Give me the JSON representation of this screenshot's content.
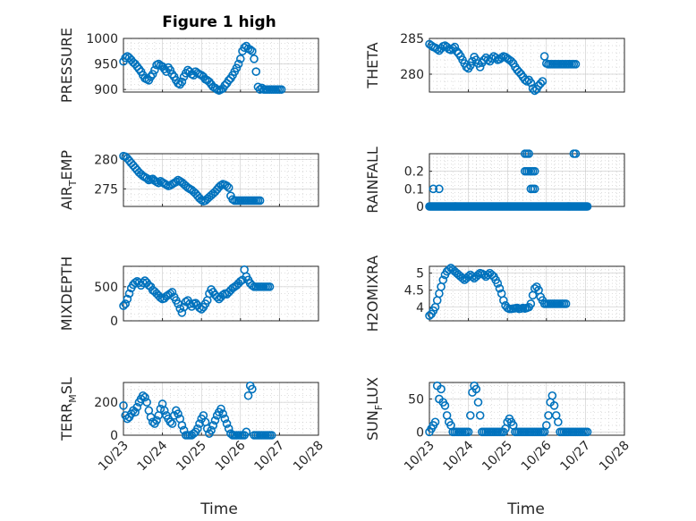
{
  "figure_title": "Figure 1 high",
  "x_label": "Time",
  "x_tick_labels": [
    "10/23",
    "10/24",
    "10/25",
    "10/26",
    "10/27",
    "10/28"
  ],
  "marker_color": "#0072BD",
  "chart_data": [
    {
      "type": "scatter",
      "title": "Figure 1 high",
      "ylabel": "PRESSURE",
      "ylim": [
        895,
        1000
      ],
      "yticks": [
        900,
        950,
        1000
      ],
      "xlim": [
        0,
        5
      ],
      "xlabel": "",
      "x": [
        0.0,
        0.05,
        0.1,
        0.15,
        0.2,
        0.25,
        0.3,
        0.35,
        0.4,
        0.45,
        0.5,
        0.55,
        0.6,
        0.65,
        0.7,
        0.75,
        0.8,
        0.85,
        0.9,
        0.95,
        1.0,
        1.05,
        1.1,
        1.15,
        1.2,
        1.25,
        1.3,
        1.35,
        1.4,
        1.45,
        1.5,
        1.55,
        1.6,
        1.65,
        1.7,
        1.75,
        1.8,
        1.85,
        1.9,
        1.95,
        2.0,
        2.05,
        2.1,
        2.15,
        2.2,
        2.25,
        2.3,
        2.35,
        2.4,
        2.45,
        2.5,
        2.55,
        2.6,
        2.65,
        2.7,
        2.75,
        2.8,
        2.85,
        2.9,
        2.95,
        3.0,
        3.05,
        3.1,
        3.15,
        3.2,
        3.25,
        3.3,
        3.35,
        3.4,
        3.45,
        3.5,
        3.55,
        3.6,
        3.65,
        3.7,
        3.75,
        3.8,
        3.85,
        3.9,
        3.95,
        4.0,
        4.05
      ],
      "y": [
        955,
        962,
        965,
        962,
        958,
        953,
        950,
        945,
        940,
        935,
        928,
        922,
        920,
        918,
        925,
        930,
        938,
        948,
        950,
        947,
        945,
        940,
        935,
        943,
        938,
        930,
        925,
        918,
        912,
        910,
        915,
        925,
        932,
        938,
        935,
        930,
        928,
        935,
        932,
        930,
        928,
        925,
        920,
        918,
        915,
        910,
        905,
        903,
        900,
        898,
        900,
        902,
        908,
        912,
        918,
        922,
        928,
        935,
        942,
        950,
        960,
        975,
        982,
        985,
        980,
        978,
        975,
        960,
        935,
        905,
        900,
        903,
        900,
        900,
        900,
        900,
        900,
        900,
        900,
        900,
        900,
        900
      ]
    },
    {
      "type": "scatter",
      "ylabel": "THETA",
      "ylim": [
        277.5,
        285
      ],
      "yticks": [
        280,
        285
      ],
      "xlim": [
        0,
        5
      ],
      "xlabel": "",
      "x": [
        0.0,
        0.05,
        0.1,
        0.15,
        0.2,
        0.25,
        0.3,
        0.35,
        0.4,
        0.45,
        0.5,
        0.55,
        0.6,
        0.65,
        0.7,
        0.75,
        0.8,
        0.85,
        0.9,
        0.95,
        1.0,
        1.05,
        1.1,
        1.15,
        1.2,
        1.25,
        1.3,
        1.35,
        1.4,
        1.45,
        1.5,
        1.55,
        1.6,
        1.65,
        1.7,
        1.75,
        1.8,
        1.85,
        1.9,
        1.95,
        2.0,
        2.05,
        2.1,
        2.15,
        2.2,
        2.25,
        2.3,
        2.35,
        2.4,
        2.45,
        2.5,
        2.55,
        2.6,
        2.65,
        2.7,
        2.75,
        2.8,
        2.85,
        2.9,
        2.95,
        3.0,
        3.05,
        3.1,
        3.15,
        3.2,
        3.25,
        3.3,
        3.35,
        3.4,
        3.45,
        3.5,
        3.55,
        3.6,
        3.65,
        3.7,
        3.75
      ],
      "y": [
        284.2,
        284.0,
        283.8,
        283.7,
        283.5,
        283.3,
        283.6,
        283.9,
        284.0,
        283.8,
        283.5,
        283.4,
        283.6,
        283.8,
        283.2,
        282.9,
        282.5,
        282.0,
        281.5,
        281.0,
        280.8,
        281.2,
        281.8,
        282.4,
        282.0,
        281.5,
        281.0,
        281.6,
        282.0,
        282.3,
        282.0,
        281.8,
        282.2,
        282.5,
        282.3,
        282.0,
        282.1,
        282.3,
        282.5,
        282.4,
        282.2,
        282.0,
        281.8,
        281.5,
        281.0,
        280.6,
        280.3,
        280.0,
        279.6,
        279.2,
        279.0,
        279.2,
        278.8,
        278.0,
        277.7,
        277.9,
        278.4,
        278.7,
        279.0,
        282.5,
        281.5,
        281.4,
        281.4,
        281.4,
        281.4,
        281.4,
        281.4,
        281.4,
        281.4,
        281.4,
        281.4,
        281.4,
        281.4,
        281.4,
        281.4,
        281.4
      ]
    },
    {
      "type": "scatter",
      "ylabel": "AIR_TEMP",
      "ylim": [
        272,
        281
      ],
      "yticks": [
        275,
        280
      ],
      "xlim": [
        0,
        5
      ],
      "xlabel": "",
      "x": [
        0.0,
        0.05,
        0.1,
        0.15,
        0.2,
        0.25,
        0.3,
        0.35,
        0.4,
        0.45,
        0.5,
        0.55,
        0.6,
        0.65,
        0.7,
        0.75,
        0.8,
        0.85,
        0.9,
        0.95,
        1.0,
        1.05,
        1.1,
        1.15,
        1.2,
        1.25,
        1.3,
        1.35,
        1.4,
        1.45,
        1.5,
        1.55,
        1.6,
        1.65,
        1.7,
        1.75,
        1.8,
        1.85,
        1.9,
        1.95,
        2.0,
        2.05,
        2.1,
        2.15,
        2.2,
        2.25,
        2.3,
        2.35,
        2.4,
        2.45,
        2.5,
        2.55,
        2.6,
        2.65,
        2.7,
        2.75,
        2.8,
        2.85,
        2.9,
        2.95,
        3.0,
        3.05,
        3.1,
        3.15,
        3.2,
        3.25,
        3.3,
        3.35,
        3.4,
        3.45,
        3.5
      ],
      "y": [
        280.6,
        280.5,
        280.2,
        279.8,
        279.4,
        279.0,
        278.6,
        278.2,
        277.8,
        277.5,
        277.2,
        277.0,
        276.8,
        276.5,
        276.6,
        276.7,
        276.4,
        276.2,
        276.0,
        276.3,
        276.1,
        275.9,
        275.7,
        275.5,
        275.6,
        275.8,
        276.0,
        276.2,
        276.5,
        276.3,
        276.1,
        275.8,
        275.5,
        275.2,
        275.0,
        274.8,
        274.5,
        274.2,
        273.8,
        273.4,
        273.1,
        272.9,
        273.0,
        273.3,
        273.6,
        273.9,
        274.2,
        274.5,
        274.9,
        275.3,
        275.6,
        275.8,
        275.7,
        275.5,
        275.2,
        273.8,
        273.2,
        273.0,
        273.0,
        273.0,
        273.0,
        273.0,
        273.0,
        273.0,
        273.0,
        273.0,
        273.0,
        273.0,
        273.0,
        273.0,
        273.0
      ]
    },
    {
      "type": "scatter",
      "ylabel": "RAINFALL",
      "ylim": [
        0,
        0.3
      ],
      "yticks": [
        0,
        0.1,
        0.2
      ],
      "ytick_labels": [
        "0",
        "0.1",
        "0.2"
      ],
      "xlim": [
        0,
        5
      ],
      "xlabel": "",
      "x": [
        0.1,
        0.25,
        2.45,
        2.5,
        2.55,
        2.45,
        2.5,
        2.55,
        2.6,
        2.65,
        2.7,
        2.6,
        2.65,
        2.7,
        3.7,
        3.75
      ],
      "y": [
        0.1,
        0.1,
        0.3,
        0.3,
        0.3,
        0.2,
        0.2,
        0.2,
        0.2,
        0.2,
        0.2,
        0.1,
        0.1,
        0.1,
        0.3,
        0.3
      ],
      "baseline_x_range": [
        0,
        4.05
      ],
      "baseline_y": 0
    },
    {
      "type": "scatter",
      "ylabel": "MIXDEPTH",
      "ylim": [
        0,
        800
      ],
      "yticks": [
        0,
        500
      ],
      "xlim": [
        0,
        5
      ],
      "xlabel": "",
      "x": [
        0.0,
        0.05,
        0.1,
        0.15,
        0.2,
        0.25,
        0.3,
        0.35,
        0.4,
        0.45,
        0.5,
        0.55,
        0.6,
        0.65,
        0.7,
        0.75,
        0.8,
        0.85,
        0.9,
        0.95,
        1.0,
        1.05,
        1.1,
        1.15,
        1.2,
        1.25,
        1.3,
        1.35,
        1.4,
        1.45,
        1.5,
        1.55,
        1.6,
        1.65,
        1.7,
        1.75,
        1.8,
        1.85,
        1.9,
        1.95,
        2.0,
        2.05,
        2.1,
        2.15,
        2.2,
        2.25,
        2.3,
        2.35,
        2.4,
        2.45,
        2.5,
        2.55,
        2.6,
        2.65,
        2.7,
        2.75,
        2.8,
        2.85,
        2.9,
        2.95,
        3.0,
        3.05,
        3.1,
        3.15,
        3.2,
        3.25,
        3.3,
        3.35,
        3.4,
        3.45,
        3.5,
        3.55,
        3.6,
        3.65,
        3.7,
        3.75
      ],
      "y": [
        220,
        250,
        320,
        400,
        480,
        530,
        560,
        580,
        560,
        520,
        560,
        590,
        560,
        520,
        500,
        450,
        430,
        400,
        370,
        340,
        320,
        330,
        360,
        380,
        400,
        420,
        350,
        300,
        250,
        180,
        120,
        200,
        280,
        300,
        250,
        210,
        250,
        260,
        230,
        190,
        170,
        200,
        250,
        300,
        400,
        460,
        420,
        380,
        350,
        320,
        350,
        380,
        400,
        390,
        420,
        450,
        480,
        500,
        520,
        550,
        580,
        600,
        750,
        650,
        600,
        550,
        520,
        500,
        500,
        500,
        500,
        500,
        500,
        500,
        500,
        500
      ]
    },
    {
      "type": "scatter",
      "ylabel": "H2OMIXRA",
      "ylim": [
        3.6,
        5.2
      ],
      "yticks": [
        4,
        4.5,
        5
      ],
      "ytick_labels": [
        "4",
        "4.5",
        "5"
      ],
      "xlim": [
        0,
        5
      ],
      "xlabel": "",
      "x": [
        0.0,
        0.05,
        0.1,
        0.15,
        0.2,
        0.25,
        0.3,
        0.35,
        0.4,
        0.45,
        0.5,
        0.55,
        0.6,
        0.65,
        0.7,
        0.75,
        0.8,
        0.85,
        0.9,
        0.95,
        1.0,
        1.05,
        1.1,
        1.15,
        1.2,
        1.25,
        1.3,
        1.35,
        1.4,
        1.45,
        1.5,
        1.55,
        1.6,
        1.65,
        1.7,
        1.75,
        1.8,
        1.85,
        1.9,
        1.95,
        2.0,
        2.05,
        2.1,
        2.15,
        2.2,
        2.25,
        2.3,
        2.35,
        2.4,
        2.45,
        2.5,
        2.55,
        2.6,
        2.65,
        2.7,
        2.75,
        2.8,
        2.85,
        2.9,
        2.95,
        3.0,
        3.05,
        3.1,
        3.15,
        3.2,
        3.25,
        3.3,
        3.35,
        3.4,
        3.45,
        3.5
      ],
      "y": [
        3.75,
        3.8,
        3.9,
        4.0,
        4.2,
        4.4,
        4.6,
        4.8,
        4.95,
        5.05,
        5.1,
        5.15,
        5.1,
        5.05,
        5.0,
        4.95,
        4.9,
        4.85,
        4.8,
        4.85,
        4.9,
        4.95,
        4.9,
        4.85,
        4.9,
        4.95,
        5.0,
        4.98,
        4.95,
        4.9,
        4.95,
        5.0,
        4.95,
        4.9,
        4.8,
        4.7,
        4.55,
        4.4,
        4.2,
        4.05,
        3.98,
        3.95,
        3.95,
        3.96,
        3.97,
        3.98,
        3.95,
        3.96,
        3.98,
        3.96,
        3.98,
        4.0,
        4.1,
        4.35,
        4.55,
        4.6,
        4.5,
        4.3,
        4.2,
        4.1,
        4.1,
        4.1,
        4.1,
        4.1,
        4.1,
        4.1,
        4.1,
        4.1,
        4.1,
        4.1,
        4.1
      ]
    },
    {
      "type": "scatter",
      "ylabel": "TERR_MSL",
      "ylim": [
        0,
        320
      ],
      "yticks": [
        0,
        200
      ],
      "xlim": [
        0,
        5
      ],
      "xlabel": "",
      "x": [
        0.0,
        0.05,
        0.1,
        0.15,
        0.2,
        0.25,
        0.3,
        0.35,
        0.4,
        0.45,
        0.5,
        0.55,
        0.6,
        0.65,
        0.7,
        0.75,
        0.8,
        0.85,
        0.9,
        0.95,
        1.0,
        1.05,
        1.1,
        1.15,
        1.2,
        1.25,
        1.3,
        1.35,
        1.4,
        1.45,
        1.5,
        1.55,
        1.6,
        1.65,
        1.7,
        1.75,
        1.8,
        1.85,
        1.9,
        1.95,
        2.0,
        2.05,
        2.1,
        2.15,
        2.2,
        2.25,
        2.3,
        2.35,
        2.4,
        2.45,
        2.5,
        2.55,
        2.6,
        2.65,
        2.7,
        2.75,
        2.8,
        2.85,
        2.9,
        2.95,
        3.0,
        3.05,
        3.1,
        3.15,
        3.2,
        3.25,
        3.3,
        3.35,
        3.4,
        3.45,
        3.5,
        3.55,
        3.6,
        3.65,
        3.7,
        3.75,
        3.8
      ],
      "y": [
        180,
        120,
        100,
        110,
        130,
        150,
        140,
        170,
        200,
        220,
        240,
        230,
        200,
        150,
        110,
        80,
        70,
        90,
        120,
        160,
        190,
        150,
        120,
        100,
        80,
        70,
        120,
        150,
        130,
        100,
        60,
        30,
        0,
        0,
        0,
        0,
        10,
        20,
        40,
        70,
        100,
        120,
        80,
        40,
        10,
        30,
        60,
        90,
        120,
        140,
        160,
        130,
        100,
        70,
        40,
        10,
        0,
        0,
        0,
        0,
        0,
        0,
        0,
        20,
        240,
        300,
        280,
        0,
        0,
        0,
        0,
        0,
        0,
        0,
        0,
        0,
        0
      ]
    },
    {
      "type": "scatter",
      "ylabel": "SUN_FLUX",
      "ylim": [
        -5,
        75
      ],
      "yticks": [
        0,
        50
      ],
      "xlim": [
        0,
        5
      ],
      "xlabel": "Time",
      "x": [
        0.0,
        0.05,
        0.1,
        0.15,
        0.2,
        0.25,
        0.3,
        0.35,
        0.4,
        0.45,
        0.5,
        0.55,
        0.6,
        0.65,
        0.7,
        0.75,
        0.8,
        0.85,
        0.9,
        0.95,
        1.0,
        1.05,
        1.1,
        1.15,
        1.2,
        1.25,
        1.3,
        1.35,
        1.4,
        1.45,
        1.5,
        1.55,
        1.6,
        1.65,
        1.7,
        1.75,
        1.8,
        1.85,
        1.9,
        1.95,
        2.0,
        2.05,
        2.1,
        2.15,
        2.2,
        2.25,
        2.3,
        2.35,
        2.4,
        2.45,
        2.5,
        2.55,
        2.6,
        2.65,
        2.7,
        2.75,
        2.8,
        2.85,
        2.9,
        2.95,
        3.0,
        3.05,
        3.1,
        3.15,
        3.2,
        3.25,
        3.3,
        3.35,
        3.4,
        3.45,
        3.5,
        3.55,
        3.6,
        3.65,
        3.7,
        3.75,
        3.8,
        3.85,
        3.9,
        3.95,
        4.0,
        4.05
      ],
      "y": [
        0,
        5,
        10,
        15,
        70,
        50,
        65,
        45,
        40,
        25,
        15,
        10,
        0,
        0,
        0,
        0,
        0,
        0,
        0,
        0,
        0,
        25,
        60,
        70,
        65,
        45,
        25,
        0,
        0,
        0,
        0,
        0,
        0,
        0,
        0,
        0,
        0,
        0,
        0,
        5,
        15,
        20,
        15,
        10,
        0,
        0,
        0,
        0,
        0,
        0,
        0,
        0,
        0,
        0,
        0,
        0,
        0,
        0,
        0,
        0,
        10,
        25,
        45,
        55,
        40,
        25,
        15,
        0,
        0,
        0,
        0,
        0,
        0,
        0,
        0,
        0,
        0,
        0,
        0,
        0,
        0,
        0
      ]
    }
  ]
}
